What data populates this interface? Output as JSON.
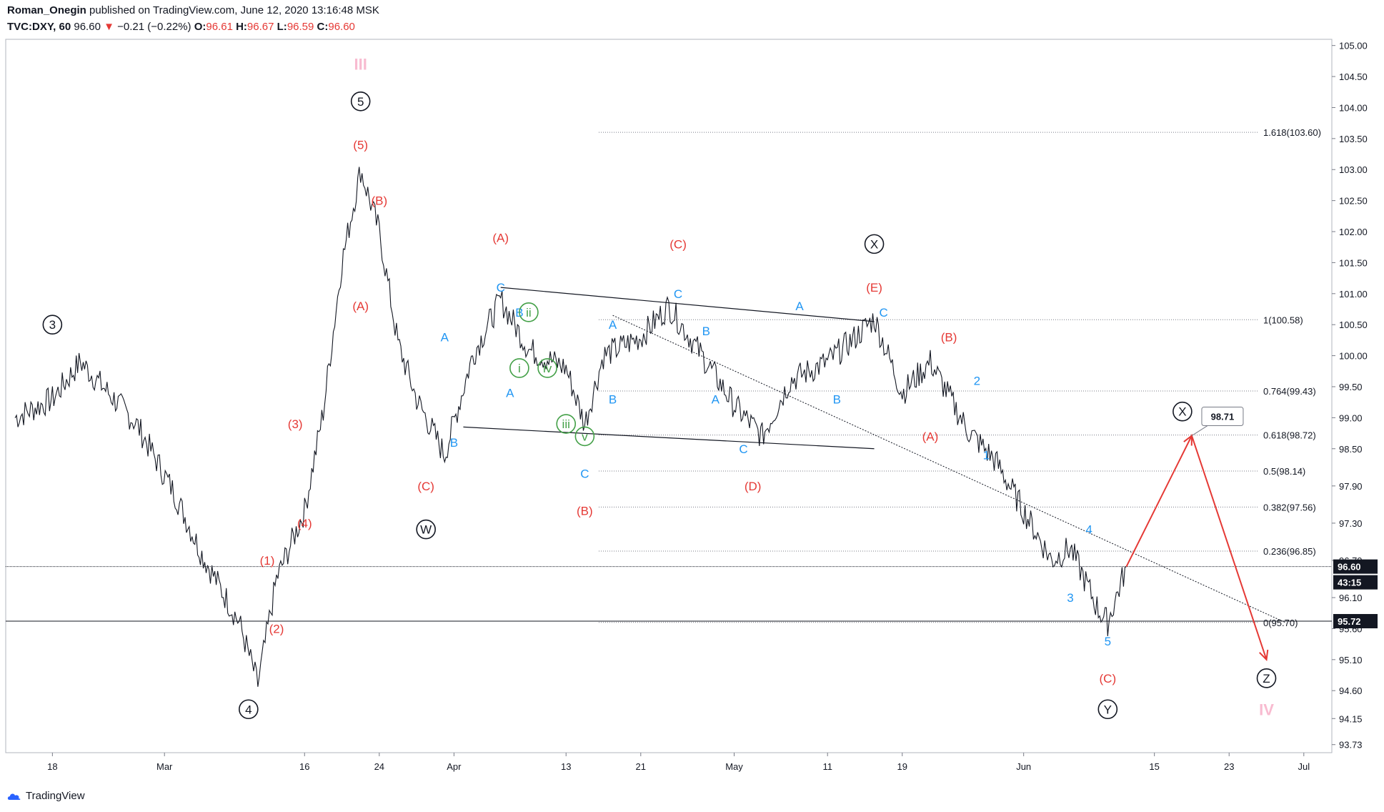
{
  "header": {
    "author": "Roman_Onegin",
    "published_text": "published on TradingView.com,",
    "date": "June 12, 2020 13:16:48 MSK",
    "symbol": "TVC:DXY, 60",
    "last": "96.60",
    "change": "−0.21 (−0.22%)",
    "o_label": "O:",
    "o": "96.61",
    "h_label": "H:",
    "h": "96.67",
    "l_label": "L:",
    "l": "96.59",
    "c_label": "C:",
    "c": "96.60"
  },
  "footer": {
    "brand": "TradingView"
  },
  "colors": {
    "price": "#131722",
    "red": "#e53935",
    "blue": "#2196f3",
    "green": "#43a047",
    "pink": "#f8bbd0",
    "grid": "#787b86"
  },
  "chart_data": {
    "type": "line",
    "ylim": [
      93.6,
      105.1
    ],
    "y_ticks": [
      "105.00",
      "104.50",
      "104.00",
      "103.50",
      "103.00",
      "102.50",
      "102.00",
      "101.50",
      "101.00",
      "100.50",
      "100.00",
      "99.50",
      "99.00",
      "98.50",
      "97.90",
      "97.30",
      "96.70",
      "96.10",
      "95.60",
      "95.10",
      "94.60",
      "94.15",
      "93.73"
    ],
    "x_ticks": [
      "18",
      "Mar",
      "16",
      "24",
      "Apr",
      "13",
      "21",
      "May",
      "11",
      "19",
      "Jun",
      "15",
      "23",
      "Jul"
    ],
    "last_price_label": "96.60",
    "countdown_label": "43:15",
    "hline_label": "95.72",
    "target_label": "98.71",
    "series": [
      {
        "x": [
          "Feb 14",
          "Feb 18",
          "Feb 21",
          "Feb 24",
          "Feb 27",
          "Mar 2",
          "Mar 5",
          "Mar 9",
          "Mar 11",
          "Mar 13",
          "Mar 16",
          "Mar 18",
          "Mar 20",
          "Mar 22",
          "Mar 24",
          "Mar 26",
          "Mar 28",
          "Mar 31",
          "Apr 3",
          "Apr 6",
          "Apr 9",
          "Apr 13",
          "Apr 15",
          "Apr 17",
          "Apr 21",
          "Apr 24",
          "Apr 28",
          "May 1",
          "May 4",
          "May 7",
          "May 11",
          "May 14",
          "May 16",
          "May 19",
          "May 22",
          "May 26",
          "May 29",
          "Jun 1",
          "Jun 4",
          "Jun 6",
          "Jun 9",
          "Jun 10",
          "Jun 12"
        ],
        "values": [
          99.0,
          99.3,
          99.9,
          99.4,
          98.9,
          97.8,
          96.8,
          95.7,
          94.7,
          96.4,
          97.5,
          99.1,
          101.5,
          103.0,
          102.0,
          100.2,
          99.3,
          98.4,
          100.0,
          100.9,
          100.1,
          99.8,
          98.9,
          100.0,
          100.3,
          100.8,
          99.9,
          99.2,
          98.7,
          99.6,
          99.9,
          100.3,
          100.6,
          99.4,
          99.9,
          98.8,
          98.3,
          97.5,
          96.7,
          96.9,
          95.9,
          95.7,
          96.6
        ]
      }
    ],
    "fib_levels": [
      {
        "label": "1.618(103.60)",
        "value": 103.6
      },
      {
        "label": "1(100.58)",
        "value": 100.58
      },
      {
        "label": "0.764(99.43)",
        "value": 99.43
      },
      {
        "label": "0.618(98.72)",
        "value": 98.72
      },
      {
        "label": "0.5(98.14)",
        "value": 98.14
      },
      {
        "label": "0.382(97.56)",
        "value": 97.56
      },
      {
        "label": "0.236(96.85)",
        "value": 96.85
      },
      {
        "label": "0(95.70)",
        "value": 95.7
      }
    ],
    "wave_labels": [
      {
        "text": "III",
        "color": "pink",
        "x": "Mar 22",
        "y": 104.7
      },
      {
        "text": "⑤",
        "color": "black",
        "x": "Mar 22",
        "y": 104.1,
        "circle": true
      },
      {
        "text": "(5)",
        "color": "red",
        "x": "Mar 22",
        "y": 103.4
      },
      {
        "text": "(B)",
        "color": "red",
        "x": "Mar 24",
        "y": 102.5
      },
      {
        "text": "(A)",
        "color": "red",
        "x": "Mar 22",
        "y": 100.8
      },
      {
        "text": "③",
        "color": "black",
        "x": "Feb 18",
        "y": 100.5,
        "circle": true
      },
      {
        "text": "(3)",
        "color": "red",
        "x": "Mar 15",
        "y": 98.9
      },
      {
        "text": "(4)",
        "color": "red",
        "x": "Mar 16",
        "y": 97.3
      },
      {
        "text": "(1)",
        "color": "red",
        "x": "Mar 12",
        "y": 96.7
      },
      {
        "text": "(2)",
        "color": "red",
        "x": "Mar 13",
        "y": 95.6
      },
      {
        "text": "④",
        "color": "black",
        "x": "Mar 10",
        "y": 94.3,
        "circle": true
      },
      {
        "text": "A",
        "color": "blue",
        "x": "Mar 31",
        "y": 100.3
      },
      {
        "text": "B",
        "color": "blue",
        "x": "Apr 1",
        "y": 98.6
      },
      {
        "text": "(C)",
        "color": "red",
        "x": "Mar 29",
        "y": 97.9
      },
      {
        "text": "W",
        "color": "black",
        "x": "Mar 29",
        "y": 97.2,
        "circle": true
      },
      {
        "text": "(A)",
        "color": "red",
        "x": "Apr 6",
        "y": 101.9
      },
      {
        "text": "C",
        "color": "blue",
        "x": "Apr 6",
        "y": 101.1
      },
      {
        "text": "B",
        "color": "blue",
        "x": "Apr 8",
        "y": 100.7
      },
      {
        "text": "ii",
        "color": "green",
        "x": "Apr 9",
        "y": 100.7,
        "circle": true
      },
      {
        "text": "i",
        "color": "green",
        "x": "Apr 8",
        "y": 99.8,
        "circle": true
      },
      {
        "text": "iv",
        "color": "green",
        "x": "Apr 11",
        "y": 99.8,
        "circle": true
      },
      {
        "text": "A",
        "color": "blue",
        "x": "Apr 7",
        "y": 99.4
      },
      {
        "text": "iii",
        "color": "green",
        "x": "Apr 13",
        "y": 98.9,
        "circle": true
      },
      {
        "text": "v",
        "color": "green",
        "x": "Apr 15",
        "y": 98.7,
        "circle": true
      },
      {
        "text": "C",
        "color": "blue",
        "x": "Apr 15",
        "y": 98.1
      },
      {
        "text": "(B)",
        "color": "red",
        "x": "Apr 15",
        "y": 97.5
      },
      {
        "text": "A",
        "color": "blue",
        "x": "Apr 18",
        "y": 100.5
      },
      {
        "text": "B",
        "color": "blue",
        "x": "Apr 18",
        "y": 99.3
      },
      {
        "text": "(C)",
        "color": "red",
        "x": "Apr 25",
        "y": 101.8
      },
      {
        "text": "C",
        "color": "blue",
        "x": "Apr 25",
        "y": 101.0
      },
      {
        "text": "B",
        "color": "blue",
        "x": "Apr 28",
        "y": 100.4
      },
      {
        "text": "A",
        "color": "blue",
        "x": "Apr 29",
        "y": 99.3
      },
      {
        "text": "C",
        "color": "blue",
        "x": "May 2",
        "y": 98.5
      },
      {
        "text": "(D)",
        "color": "red",
        "x": "May 3",
        "y": 97.9
      },
      {
        "text": "A",
        "color": "blue",
        "x": "May 8",
        "y": 100.8
      },
      {
        "text": "B",
        "color": "blue",
        "x": "May 12",
        "y": 99.3
      },
      {
        "text": "X",
        "color": "black",
        "x": "May 16",
        "y": 101.8,
        "circle": true
      },
      {
        "text": "(E)",
        "color": "red",
        "x": "May 16",
        "y": 101.1
      },
      {
        "text": "C",
        "color": "blue",
        "x": "May 17",
        "y": 100.7
      },
      {
        "text": "(B)",
        "color": "red",
        "x": "May 24",
        "y": 100.3
      },
      {
        "text": "2",
        "color": "blue",
        "x": "May 27",
        "y": 99.6
      },
      {
        "text": "(A)",
        "color": "red",
        "x": "May 22",
        "y": 98.7
      },
      {
        "text": "1",
        "color": "blue",
        "x": "May 28",
        "y": 98.4
      },
      {
        "text": "4",
        "color": "blue",
        "x": "Jun 8",
        "y": 97.2
      },
      {
        "text": "3",
        "color": "blue",
        "x": "Jun 6",
        "y": 96.1
      },
      {
        "text": "5",
        "color": "blue",
        "x": "Jun 10",
        "y": 95.4
      },
      {
        "text": "(C)",
        "color": "red",
        "x": "Jun 10",
        "y": 94.8
      },
      {
        "text": "Y",
        "color": "black",
        "x": "Jun 10",
        "y": 94.3,
        "circle": true
      },
      {
        "text": "X",
        "color": "black",
        "x": "Jun 18",
        "y": 99.1,
        "circle": true
      },
      {
        "text": "Z",
        "color": "black",
        "x": "Jun 27",
        "y": 94.8,
        "circle": true
      },
      {
        "text": "IV",
        "color": "pink",
        "x": "Jun 27",
        "y": 94.3
      }
    ],
    "forecast": {
      "x": [
        "Jun 12",
        "Jun 19",
        "Jun 27"
      ],
      "values": [
        96.6,
        98.71,
        95.1
      ]
    },
    "trendlines": [
      {
        "x": [
          "Apr 6",
          "May 16"
        ],
        "values": [
          101.1,
          100.55
        ]
      },
      {
        "x": [
          "Apr 2",
          "May 16"
        ],
        "values": [
          98.85,
          98.5
        ]
      },
      {
        "x": [
          "Apr 18",
          "Jun 29"
        ],
        "values": [
          100.65,
          95.7
        ]
      }
    ]
  }
}
